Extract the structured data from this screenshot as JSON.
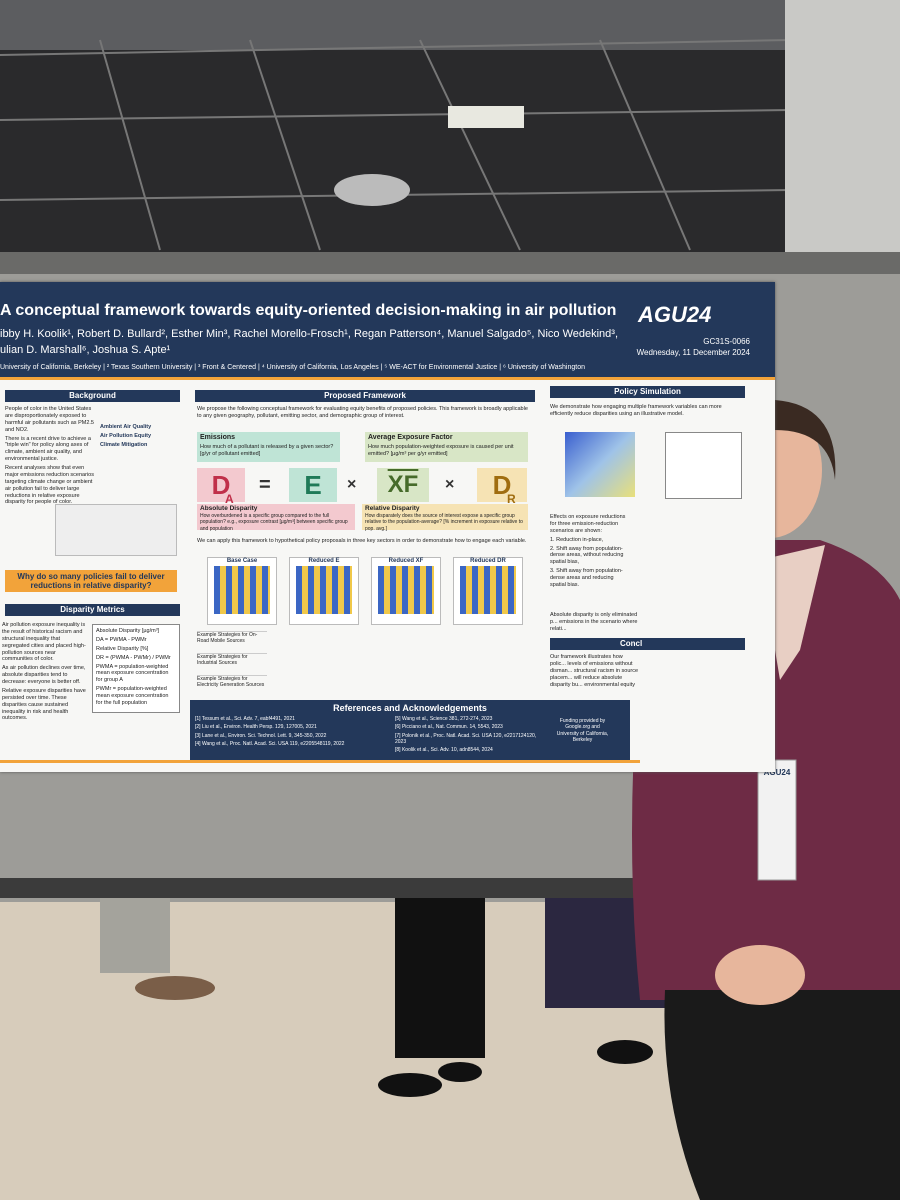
{
  "poster": {
    "title": "A conceptual framework towards equity-oriented decision-making in air pollution",
    "authors": "ibby H. Koolik¹, Robert D. Bullard², Esther Min³, Rachel Morello-Frosch¹, Regan Patterson⁴, Manuel Salgado⁵, Nico Wedekind³,",
    "authors_line2": "ulian D. Marshall⁶, Joshua S. Apte¹",
    "affiliations": "University of California, Berkeley | ² Texas Southern University | ³ Front & Centered | ⁴ University of California, Los Angeles | ⁵ WE-ACT for Environmental Justice | ⁶ University of Washington",
    "logo": "AGU24",
    "session": "GC31S-0066",
    "date": "Wednesday, 11 December 2024",
    "background": {
      "heading": "Background",
      "text": [
        "People of color in the United States are disproportionately exposed to harmful air pollutants such as PM2.5 and NO2.",
        "There is a recent drive to achieve a \"triple win\" for policy along axes of climate, ambient air quality, and environmental justice.",
        "Recent analyses show that even major emissions reduction scenarios targeting climate change or ambient air pollution fail to deliver large reductions in relative exposure disparity for people of color."
      ],
      "diagram": [
        "Ambient Air Quality",
        "Air Pollution Equity",
        "Climate Mitigation"
      ]
    },
    "question": "Why do so many policies fail to deliver reductions in relative disparity?",
    "metrics": {
      "heading": "Disparity Metrics",
      "text": [
        "Air pollution exposure inequality is the result of historical racism and structural inequality that segregated cities and placed high-pollution sources near communities of color.",
        "As air pollution declines over time, absolute disparities tend to decrease: everyone is better off.",
        "Relative exposure disparities have persisted over time. These disparities cause sustained inequality in risk and health outcomes."
      ],
      "box": [
        "Absolute Disparity [µg/m³]",
        "DA = PWMA - PWMr",
        "Relative Disparity [%]",
        "DR = (PWMA - PWMr) / PWMr",
        "PWMA = population-weighted mean exposure concentration for group A",
        "PWMr = population-weighted mean exposure concentration for the full population"
      ]
    },
    "framework": {
      "heading": "Proposed Framework",
      "intro": "We propose the following conceptual framework for evaluating equity benefits of proposed policies. This framework is broadly applicable to any given geography, pollutant, emitting sector, and demographic group of interest.",
      "emissions": "Emissions",
      "emissions_q": "How much of a pollutant is released by a given sector? [g/yr of pollutant emitted]",
      "xf": "Average Exposure Factor",
      "xf_q": "How much population-weighted exposure is caused per unit emitted? [µg/m³ per g/yr emitted]",
      "abs": "Absolute Disparity",
      "abs_q": "How overburdened is a specific group compared to the full population? e.g., exposure contrast [µg/m³] between specific group and population",
      "rel": "Relative Disparity",
      "rel_q": "How disparately does the source of interest expose a specific group relative to the population-average? [% increment in exposure relative to pop. avg.]",
      "eq": [
        "D",
        "A",
        "=",
        "E",
        "×",
        "XF",
        "×",
        "D",
        "R"
      ],
      "apply": "We can apply this framework to hypothetical policy proposals in three key sectors in order to demonstrate how to engage each variable.",
      "panels": [
        "Base Case",
        "Reduced E",
        "Reduced XF",
        "Reduced DR"
      ],
      "rows": [
        "Example Strategies for On-Road Mobile Sources",
        "Example Strategies for Industrial Sources",
        "Example Strategies for Electricity Generation Sources"
      ]
    },
    "simulation": {
      "heading": "Policy Simulation",
      "text": "We demonstrate how engaging multiple framework variables can more efficiently reduce disparities using an illustrative model.",
      "list": [
        "Effects on exposure reductions for three emission-reduction scenarios are shown:",
        "1. Reduction in-place,",
        "2. Shift away from population-dense areas, without reducing spatial bias,",
        "3. Shift away from population-dense areas and reducing spatial bias."
      ],
      "note": "Absolute disparity is only eliminated p... emissions in the scenario where relati...",
      "concl": "Concl",
      "concl_text": "Our framework illustrates how polic... levels of emissions without disman... structural racism in source placem... will reduce absolute disparity bu... environmental equity"
    },
    "references": {
      "heading": "References and Acknowledgements",
      "col1": [
        "[1] Tessum et al., Sci. Adv. 7, eabf4491, 2021",
        "[2] Liu et al., Environ. Health Persp. 129, 127005, 2021",
        "[3] Lane et al., Environ. Sci. Technol. Lett. 9, 345-350, 2022",
        "[4] Wang et al., Proc. Natl. Acad. Sci. USA 119, e2205548119, 2022"
      ],
      "col2": [
        "[5] Wang et al., Science 381, 272-274, 2023",
        "[6] Picciano et al., Nat. Commun. 14, 5543, 2023",
        "[7] Polonik et al., Proc. Natl. Acad. Sci. USA 120, e2217124120, 2023",
        "[8] Koolik et al., Sci. Adv. 10, adn8544, 2024"
      ],
      "funding": "Funding provided by Google.org and University of California, Berkeley"
    },
    "badge": "AGU24"
  }
}
